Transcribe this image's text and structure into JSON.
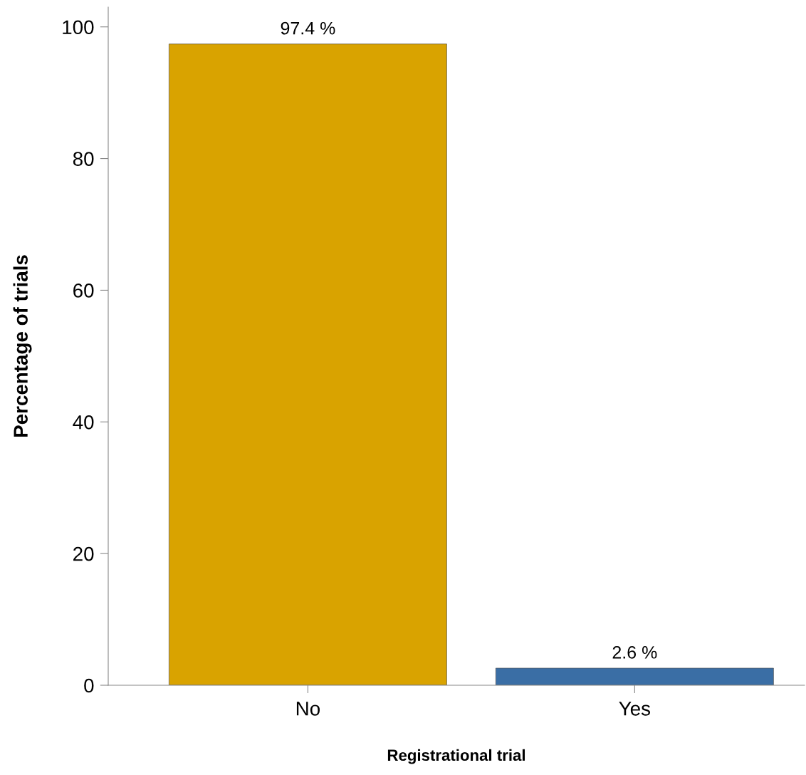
{
  "chart_data": {
    "type": "bar",
    "xlabel": "Registrational trial",
    "ylabel": "Percentage of trials",
    "categories": [
      "No",
      "Yes"
    ],
    "values": [
      97.4,
      2.6
    ],
    "colors": [
      "#d9a300",
      "#3a6ea5"
    ],
    "value_labels": [
      "97.4 %",
      "2.6 %"
    ],
    "ylim": [
      0,
      103
    ],
    "yticks": [
      0,
      20,
      40,
      60,
      80,
      100
    ],
    "grid": false,
    "legend": false
  }
}
